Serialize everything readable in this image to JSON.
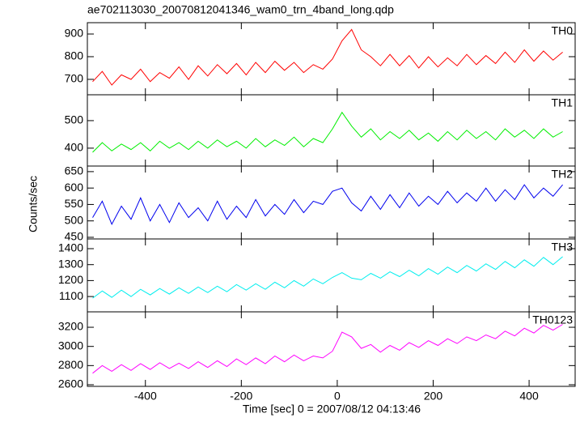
{
  "chart_data": {
    "type": "line",
    "title": "ae702113030_20070812041346_wam0_trn_4band_long.qdp",
    "xlabel": "Time [sec] 0 = 2007/08/12 04:13:46",
    "ylabel": "Counts/sec",
    "xlim": [
      -521,
      496
    ],
    "xticks": [
      -400,
      -200,
      0,
      200,
      400
    ],
    "x": [
      -510,
      -490,
      -470,
      -450,
      -430,
      -410,
      -390,
      -370,
      -350,
      -330,
      -310,
      -290,
      -270,
      -250,
      -230,
      -210,
      -190,
      -170,
      -150,
      -130,
      -110,
      -90,
      -70,
      -50,
      -30,
      -10,
      10,
      30,
      50,
      70,
      90,
      110,
      130,
      150,
      170,
      190,
      210,
      230,
      250,
      270,
      290,
      310,
      330,
      350,
      370,
      390,
      410,
      430,
      450,
      470
    ],
    "series": [
      {
        "name": "TH0",
        "color": "#ff0000",
        "ylim": [
          632,
          950
        ],
        "yticks": [
          700,
          800,
          900
        ],
        "values": [
          690,
          735,
          675,
          720,
          700,
          745,
          690,
          730,
          705,
          755,
          700,
          760,
          715,
          765,
          725,
          770,
          720,
          775,
          730,
          780,
          740,
          775,
          730,
          765,
          745,
          790,
          870,
          920,
          830,
          800,
          760,
          810,
          760,
          805,
          750,
          800,
          755,
          795,
          760,
          810,
          765,
          805,
          770,
          820,
          775,
          830,
          780,
          825,
          785,
          820
        ]
      },
      {
        "name": "TH1",
        "color": "#00ee00",
        "ylim": [
          335,
          594
        ],
        "yticks": [
          400,
          500
        ],
        "values": [
          385,
          420,
          390,
          415,
          395,
          420,
          390,
          425,
          400,
          420,
          395,
          425,
          400,
          430,
          405,
          425,
          400,
          435,
          405,
          430,
          410,
          440,
          405,
          435,
          420,
          470,
          530,
          480,
          440,
          470,
          430,
          460,
          435,
          465,
          430,
          455,
          425,
          460,
          430,
          465,
          435,
          460,
          430,
          470,
          440,
          465,
          435,
          470,
          440,
          460
        ]
      },
      {
        "name": "TH2",
        "color": "#0000ee",
        "ylim": [
          445,
          667
        ],
        "yticks": [
          450,
          500,
          550,
          600,
          650
        ],
        "values": [
          510,
          560,
          490,
          545,
          505,
          570,
          500,
          550,
          495,
          555,
          510,
          540,
          500,
          560,
          505,
          545,
          510,
          565,
          515,
          550,
          520,
          565,
          525,
          560,
          550,
          590,
          600,
          555,
          530,
          575,
          535,
          580,
          540,
          585,
          545,
          575,
          550,
          590,
          555,
          585,
          560,
          600,
          560,
          595,
          565,
          610,
          570,
          600,
          575,
          610
        ]
      },
      {
        "name": "TH3",
        "color": "#00eeee",
        "ylim": [
          1004,
          1461
        ],
        "yticks": [
          1100,
          1200,
          1300,
          1400
        ],
        "values": [
          1090,
          1135,
          1095,
          1140,
          1100,
          1145,
          1110,
          1150,
          1115,
          1155,
          1120,
          1160,
          1125,
          1165,
          1130,
          1175,
          1140,
          1180,
          1145,
          1190,
          1155,
          1200,
          1165,
          1210,
          1180,
          1220,
          1250,
          1215,
          1205,
          1245,
          1215,
          1255,
          1225,
          1265,
          1230,
          1275,
          1240,
          1285,
          1250,
          1295,
          1260,
          1305,
          1270,
          1320,
          1280,
          1330,
          1290,
          1345,
          1300,
          1350
        ]
      },
      {
        "name": "TH0123",
        "color": "#ff00ff",
        "ylim": [
          2583,
          3361
        ],
        "yticks": [
          2600,
          2800,
          3000,
          3200
        ],
        "values": [
          2720,
          2800,
          2740,
          2810,
          2750,
          2820,
          2760,
          2830,
          2770,
          2825,
          2770,
          2840,
          2780,
          2850,
          2790,
          2870,
          2810,
          2880,
          2820,
          2900,
          2840,
          2910,
          2850,
          2900,
          2880,
          2950,
          3150,
          3100,
          2980,
          3020,
          2940,
          3010,
          2960,
          3040,
          2990,
          3060,
          3010,
          3080,
          3030,
          3100,
          3060,
          3120,
          3080,
          3160,
          3110,
          3190,
          3140,
          3220,
          3170,
          3230
        ]
      }
    ]
  }
}
